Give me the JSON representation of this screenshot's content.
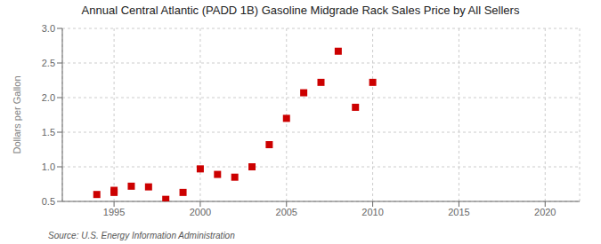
{
  "chart_data": {
    "type": "scatter",
    "title": "Annual Central Atlantic (PADD 1B) Gasoline Midgrade Rack Sales Price by All Sellers",
    "ylabel": "Dollars per Gallon",
    "source": "Source: U.S. Energy Information Administration",
    "x": [
      1994,
      1995,
      1995,
      1996,
      1997,
      1998,
      1999,
      2000,
      2001,
      2002,
      2003,
      2004,
      2005,
      2006,
      2007,
      2008,
      2009,
      2010
    ],
    "values": [
      0.6,
      0.63,
      0.66,
      0.72,
      0.71,
      0.53,
      0.63,
      0.97,
      0.89,
      0.85,
      1.0,
      1.32,
      1.7,
      2.07,
      2.22,
      2.67,
      1.86,
      2.22
    ],
    "color": "#cc0000",
    "marker": "square",
    "xlim": [
      1992,
      2022
    ],
    "ylim": [
      0.5,
      3.0
    ],
    "xticks": [
      1995,
      2000,
      2005,
      2010,
      2015,
      2020
    ],
    "yticks": [
      0.5,
      {
        "value": 1.0,
        "label": "1.0"
      },
      1.5,
      {
        "value": 2.0,
        "label": "2.0"
      },
      2.5,
      {
        "value": 3.0,
        "label": "3.0"
      }
    ],
    "grid": true
  }
}
